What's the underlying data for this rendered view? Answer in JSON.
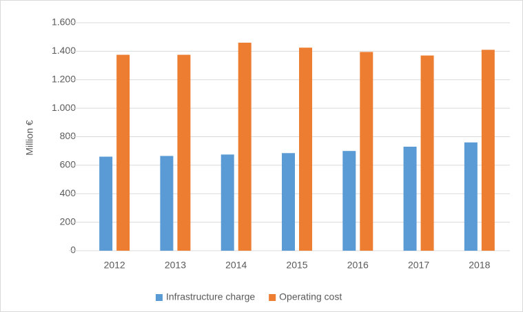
{
  "chart_data": {
    "type": "bar",
    "categories": [
      "2012",
      "2013",
      "2014",
      "2015",
      "2016",
      "2017",
      "2018"
    ],
    "series": [
      {
        "name": "Infrastructure charge",
        "color": "#5b9bd5",
        "values": [
          660,
          665,
          675,
          685,
          700,
          730,
          760
        ]
      },
      {
        "name": "Operating cost",
        "color": "#ed7d31",
        "values": [
          1375,
          1375,
          1460,
          1425,
          1395,
          1370,
          1410
        ]
      }
    ],
    "y_label": "Million €",
    "ylim": [
      0,
      1600
    ],
    "yticks": [
      0,
      200,
      400,
      600,
      800,
      {
        "value": 1000,
        "label": "1.000"
      },
      {
        "value": 1200,
        "label": "1.200"
      },
      {
        "value": 1400,
        "label": "1.400"
      },
      {
        "value": 1600,
        "label": "1.600"
      }
    ],
    "grid": true,
    "legend": "bottom"
  }
}
